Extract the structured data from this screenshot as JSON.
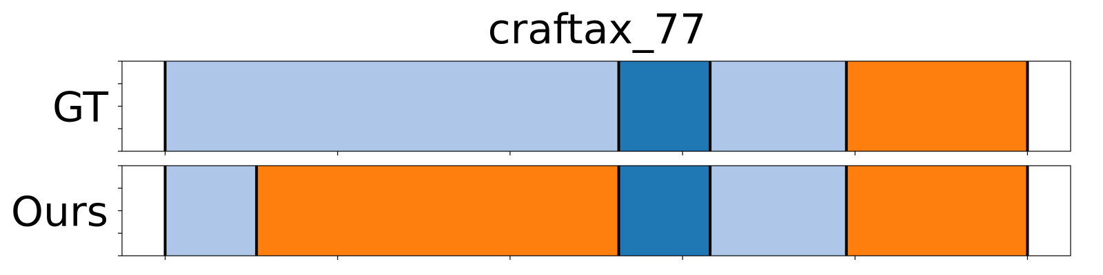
{
  "chart_data": {
    "type": "bar",
    "title": "craftax_77",
    "xlabel": "",
    "ylabel": "",
    "xlim": [
      0,
      550
    ],
    "grid": false,
    "legend": "none",
    "x_ticks": [
      25,
      125,
      225,
      325,
      425,
      525
    ],
    "series": [
      {
        "name": "GT",
        "segments": [
          {
            "start": 25,
            "end": 288,
            "color": "#aec7e8"
          },
          {
            "start": 288,
            "end": 341,
            "color": "#1f77b4"
          },
          {
            "start": 341,
            "end": 420,
            "color": "#aec7e8"
          },
          {
            "start": 420,
            "end": 525,
            "color": "#ff7f0e"
          }
        ]
      },
      {
        "name": "Ours",
        "segments": [
          {
            "start": 25,
            "end": 78,
            "color": "#aec7e8"
          },
          {
            "start": 78,
            "end": 288,
            "color": "#ff7f0e"
          },
          {
            "start": 288,
            "end": 341,
            "color": "#1f77b4"
          },
          {
            "start": 341,
            "end": 420,
            "color": "#aec7e8"
          },
          {
            "start": 420,
            "end": 525,
            "color": "#ff7f0e"
          }
        ]
      }
    ]
  }
}
